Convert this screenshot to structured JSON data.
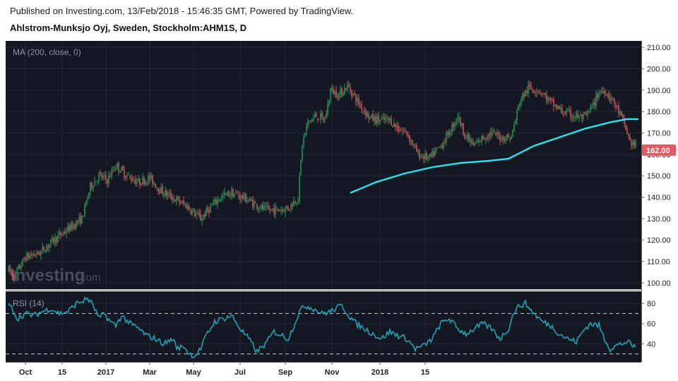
{
  "header": {
    "published": "Published on Investing.com, 13/Feb/2018 - 15:46:35 GMT, Powered by TradingView.",
    "symbol": "Ahlstrom-Munksjo Oyj, Sweden, Stockholm:AHM1S, D"
  },
  "watermark": {
    "brand": "Investing",
    "suffix": ".com"
  },
  "colors": {
    "background": "#131722",
    "up": "#26a65b",
    "down": "#e05a63",
    "ma": "#29e3f0",
    "rsi": "#21a3b3",
    "price_label": "#e05a63"
  },
  "chart_data": [
    {
      "type": "candlestick",
      "indicator_label": "MA (200, close, 0)",
      "y_ticks": [
        "210.00",
        "200.00",
        "190.00",
        "180.00",
        "170.00",
        "160.00",
        "150.00",
        "140.00",
        "130.00",
        "120.00",
        "110.00",
        "100.00"
      ],
      "ylim": [
        97,
        213
      ],
      "last_price_label": "162.00",
      "last_price": 162,
      "x_labels": [
        "Oct",
        "15",
        "2017",
        "Mar",
        "May",
        "Jul",
        "Sep",
        "Nov",
        "2018",
        "15"
      ],
      "anchors": [
        [
          0,
          106
        ],
        [
          4,
          103
        ],
        [
          12,
          112
        ],
        [
          22,
          114
        ],
        [
          32,
          120
        ],
        [
          44,
          126
        ],
        [
          52,
          130
        ],
        [
          58,
          145
        ],
        [
          64,
          150
        ],
        [
          70,
          148
        ],
        [
          76,
          155
        ],
        [
          84,
          150
        ],
        [
          92,
          147
        ],
        [
          100,
          149
        ],
        [
          108,
          143
        ],
        [
          118,
          139
        ],
        [
          126,
          136
        ],
        [
          136,
          130
        ],
        [
          144,
          136
        ],
        [
          150,
          140
        ],
        [
          158,
          142
        ],
        [
          166,
          140
        ],
        [
          174,
          137
        ],
        [
          182,
          134
        ],
        [
          190,
          134
        ],
        [
          198,
          135
        ],
        [
          205,
          140
        ],
        [
          208,
          165
        ],
        [
          212,
          175
        ],
        [
          218,
          178
        ],
        [
          224,
          176
        ],
        [
          228,
          190
        ],
        [
          234,
          188
        ],
        [
          240,
          192
        ],
        [
          248,
          184
        ],
        [
          256,
          177
        ],
        [
          262,
          176
        ],
        [
          270,
          176
        ],
        [
          276,
          172
        ],
        [
          282,
          170
        ],
        [
          290,
          160
        ],
        [
          298,
          158
        ],
        [
          306,
          164
        ],
        [
          312,
          170
        ],
        [
          318,
          178
        ],
        [
          324,
          168
        ],
        [
          330,
          164
        ],
        [
          336,
          168
        ],
        [
          342,
          170
        ],
        [
          348,
          168
        ],
        [
          356,
          168
        ],
        [
          362,
          185
        ],
        [
          368,
          191
        ],
        [
          376,
          190
        ],
        [
          384,
          184
        ],
        [
          392,
          180
        ],
        [
          400,
          178
        ],
        [
          408,
          177
        ],
        [
          414,
          183
        ],
        [
          418,
          189
        ],
        [
          422,
          190
        ],
        [
          428,
          185
        ],
        [
          432,
          180
        ],
        [
          436,
          174
        ],
        [
          440,
          166
        ],
        [
          444,
          164
        ]
      ],
      "ma": [
        [
          242,
          142
        ],
        [
          260,
          147
        ],
        [
          280,
          151
        ],
        [
          300,
          154
        ],
        [
          320,
          156
        ],
        [
          340,
          157
        ],
        [
          354,
          158
        ],
        [
          372,
          164
        ],
        [
          390,
          168
        ],
        [
          408,
          172
        ],
        [
          426,
          175
        ],
        [
          438,
          176.5
        ],
        [
          446,
          176.5
        ]
      ]
    },
    {
      "type": "line",
      "indicator_label": "RSI (14)",
      "y_ticks": [
        "80",
        "60",
        "40"
      ],
      "ylim": [
        22,
        92
      ],
      "levels": [
        70,
        30
      ],
      "anchors": [
        [
          0,
          78
        ],
        [
          3,
          75
        ],
        [
          6,
          65
        ],
        [
          12,
          70
        ],
        [
          18,
          68
        ],
        [
          24,
          72
        ],
        [
          30,
          75
        ],
        [
          36,
          70
        ],
        [
          42,
          72
        ],
        [
          48,
          80
        ],
        [
          52,
          82
        ],
        [
          56,
          85
        ],
        [
          60,
          78
        ],
        [
          64,
          65
        ],
        [
          68,
          70
        ],
        [
          72,
          62
        ],
        [
          76,
          58
        ],
        [
          80,
          68
        ],
        [
          86,
          60
        ],
        [
          92,
          55
        ],
        [
          98,
          48
        ],
        [
          104,
          45
        ],
        [
          110,
          40
        ],
        [
          116,
          45
        ],
        [
          120,
          35
        ],
        [
          124,
          38
        ],
        [
          128,
          30
        ],
        [
          132,
          28
        ],
        [
          136,
          35
        ],
        [
          140,
          48
        ],
        [
          146,
          62
        ],
        [
          152,
          65
        ],
        [
          158,
          68
        ],
        [
          164,
          55
        ],
        [
          170,
          45
        ],
        [
          176,
          32
        ],
        [
          182,
          40
        ],
        [
          188,
          52
        ],
        [
          194,
          48
        ],
        [
          198,
          45
        ],
        [
          202,
          58
        ],
        [
          206,
          72
        ],
        [
          210,
          78
        ],
        [
          216,
          75
        ],
        [
          222,
          70
        ],
        [
          228,
          72
        ],
        [
          232,
          75
        ],
        [
          236,
          78
        ],
        [
          240,
          70
        ],
        [
          246,
          60
        ],
        [
          252,
          55
        ],
        [
          258,
          50
        ],
        [
          264,
          45
        ],
        [
          270,
          52
        ],
        [
          276,
          48
        ],
        [
          282,
          45
        ],
        [
          288,
          35
        ],
        [
          294,
          38
        ],
        [
          300,
          45
        ],
        [
          306,
          60
        ],
        [
          312,
          65
        ],
        [
          318,
          55
        ],
        [
          324,
          50
        ],
        [
          330,
          55
        ],
        [
          336,
          60
        ],
        [
          342,
          55
        ],
        [
          348,
          45
        ],
        [
          354,
          55
        ],
        [
          358,
          72
        ],
        [
          362,
          78
        ],
        [
          366,
          80
        ],
        [
          372,
          70
        ],
        [
          378,
          62
        ],
        [
          384,
          58
        ],
        [
          390,
          50
        ],
        [
          396,
          45
        ],
        [
          402,
          42
        ],
        [
          408,
          55
        ],
        [
          412,
          60
        ],
        [
          418,
          58
        ],
        [
          422,
          45
        ],
        [
          426,
          35
        ],
        [
          430,
          38
        ],
        [
          434,
          40
        ],
        [
          438,
          42
        ],
        [
          442,
          38
        ],
        [
          444,
          36
        ]
      ]
    }
  ]
}
